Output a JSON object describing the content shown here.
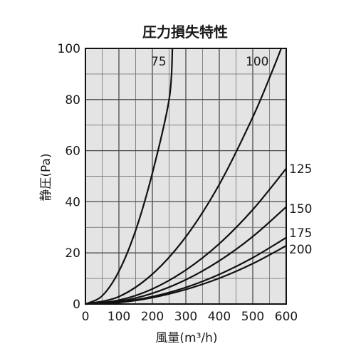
{
  "chart_data": {
    "type": "line",
    "title": "圧力損失特性",
    "xlabel": "風量(m³/h)",
    "ylabel": "静圧(Pa)",
    "xlim": [
      0,
      600
    ],
    "ylim": [
      0,
      100
    ],
    "x_ticks": [
      "0",
      "100",
      "200",
      "300",
      "400",
      "500",
      "600"
    ],
    "y_ticks": [
      "0",
      "20",
      "40",
      "60",
      "80",
      "100"
    ],
    "grid": true,
    "background": "#e4e4e4",
    "curve_color": "#111111",
    "series": [
      {
        "name": "75",
        "x": [
          0,
          50,
          100,
          150,
          200,
          250,
          260
        ],
        "y": [
          0,
          3.2,
          12.8,
          28.8,
          51.2,
          80,
          100
        ]
      },
      {
        "name": "100",
        "x": [
          0,
          100,
          200,
          300,
          400,
          500,
          560,
          585
        ],
        "y": [
          0,
          2.9,
          11.7,
          26.3,
          46.8,
          73.1,
          91.7,
          100
        ]
      },
      {
        "name": "125",
        "x": [
          0,
          100,
          200,
          300,
          400,
          500,
          600
        ],
        "y": [
          0,
          1.5,
          5.9,
          13.3,
          23.6,
          36.9,
          53
        ]
      },
      {
        "name": "150",
        "x": [
          0,
          100,
          200,
          300,
          400,
          500,
          600
        ],
        "y": [
          0,
          1.0,
          4.2,
          9.5,
          16.9,
          26.4,
          38
        ]
      },
      {
        "name": "175",
        "x": [
          0,
          100,
          200,
          300,
          400,
          500,
          600
        ],
        "y": [
          0,
          0.7,
          2.9,
          6.5,
          11.6,
          18.1,
          26
        ]
      },
      {
        "name": "200",
        "x": [
          0,
          100,
          200,
          300,
          400,
          500,
          600
        ],
        "y": [
          0,
          0.6,
          2.5,
          5.7,
          10.1,
          15.8,
          22.8
        ]
      }
    ]
  }
}
